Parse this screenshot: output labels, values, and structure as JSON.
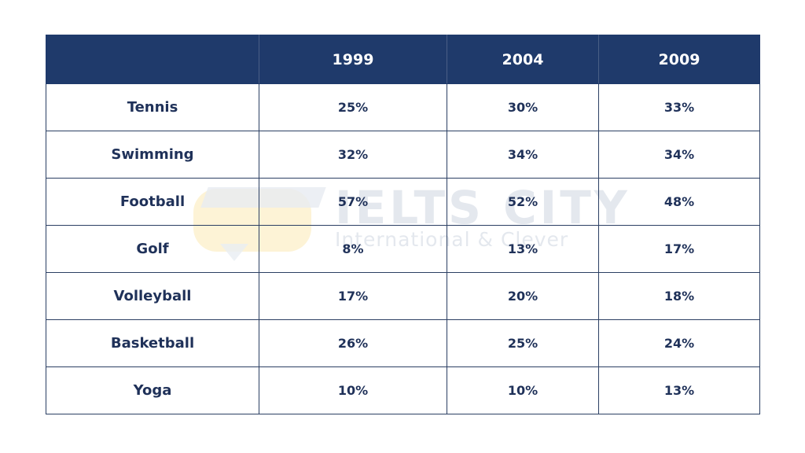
{
  "chart_data": {
    "type": "table",
    "columns": [
      "",
      "1999",
      "2004",
      "2009"
    ],
    "rows": [
      {
        "label": "Tennis",
        "values": [
          "25%",
          "30%",
          "33%"
        ]
      },
      {
        "label": "Swimming",
        "values": [
          "32%",
          "34%",
          "34%"
        ]
      },
      {
        "label": "Football",
        "values": [
          "57%",
          "52%",
          "48%"
        ]
      },
      {
        "label": "Golf",
        "values": [
          "8%",
          "13%",
          "17%"
        ]
      },
      {
        "label": "Volleyball",
        "values": [
          "17%",
          "20%",
          "18%"
        ]
      },
      {
        "label": "Basketball",
        "values": [
          "26%",
          "25%",
          "24%"
        ]
      },
      {
        "label": "Yoga",
        "values": [
          "10%",
          "10%",
          "13%"
        ]
      }
    ]
  },
  "watermark": {
    "title": "IELTS CITY",
    "subtitle": "International & Clever"
  },
  "colors": {
    "header_bg": "#1f3a6b",
    "text": "#1f3159",
    "border": "#2b3f63"
  }
}
